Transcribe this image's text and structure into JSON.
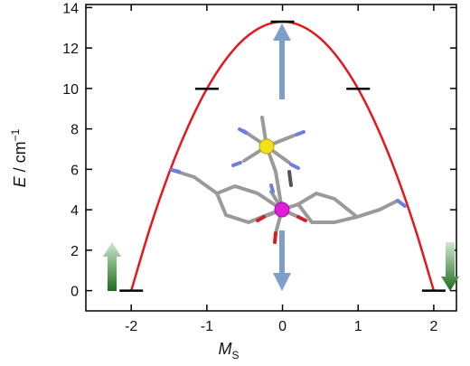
{
  "chart_data": {
    "type": "line",
    "x_label": {
      "symbol": "M",
      "subscript": "S"
    },
    "y_label": {
      "symbol": "E",
      "unit": " / cm",
      "exponent": "−1"
    },
    "xlim": [
      -2.6,
      2.3
    ],
    "ylim": [
      -1,
      14.15
    ],
    "xticks": [
      -2,
      -1,
      0,
      1,
      2
    ],
    "yticks": [
      0,
      2,
      4,
      6,
      8,
      10,
      12,
      14
    ],
    "series": [
      {
        "name": "barrier",
        "kind": "curve",
        "color": "#e8161b",
        "x": [
          -2,
          -1.75,
          -1.5,
          -1.25,
          -1,
          -0.75,
          -0.5,
          -0.25,
          0,
          0.25,
          0.5,
          0.75,
          1,
          1.25,
          1.5,
          1.75,
          2
        ],
        "values": [
          0,
          3.12,
          5.82,
          8.1,
          9.98,
          11.43,
          12.47,
          13.09,
          13.3,
          13.09,
          12.47,
          11.43,
          9.98,
          8.1,
          5.82,
          3.12,
          0
        ]
      },
      {
        "name": "levels",
        "kind": "levels",
        "color": "#000000",
        "x": [
          -2,
          -1,
          0,
          1,
          2
        ],
        "values": [
          0,
          9.98,
          13.3,
          9.98,
          0
        ]
      }
    ]
  }
}
